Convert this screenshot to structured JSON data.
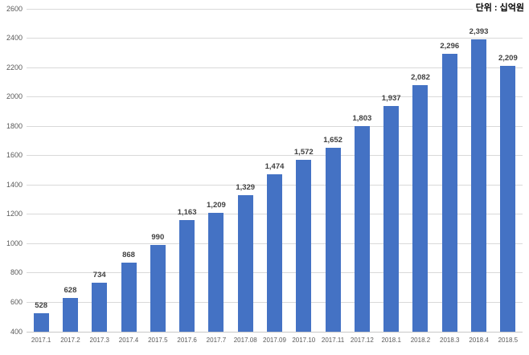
{
  "chart": {
    "unit_label": "단위 : 십억원",
    "colors": {
      "bar": "#4472C4",
      "grid": "#D9D9D9",
      "axis": "#C8C8C8",
      "tick_label": "#595959",
      "value_label": "#404040"
    }
  },
  "chart_data": {
    "type": "bar",
    "title": "",
    "xlabel": "",
    "ylabel": "",
    "categories": [
      "2017.1",
      "2017.2",
      "2017.3",
      "2017.4",
      "2017.5",
      "2017.6",
      "2017.7",
      "2017.08",
      "2017.09",
      "2017.10",
      "2017.11",
      "2017.12",
      "2018.1",
      "2018.2",
      "2018.3",
      "2018.4",
      "2018.5"
    ],
    "values": [
      528,
      628,
      734,
      868,
      990,
      1163,
      1209,
      1329,
      1474,
      1572,
      1652,
      1803,
      1937,
      2082,
      2296,
      2393,
      2209
    ],
    "value_labels": [
      "528",
      "628",
      "734",
      "868",
      "990",
      "1,163",
      "1,209",
      "1,329",
      "1,474",
      "1,572",
      "1,652",
      "1,803",
      "1,937",
      "2,082",
      "2,296",
      "2,393",
      "2,209"
    ],
    "ylim": [
      400,
      2600
    ],
    "ytick_step": 200,
    "grid": "horizontal",
    "legend_position": "none"
  }
}
